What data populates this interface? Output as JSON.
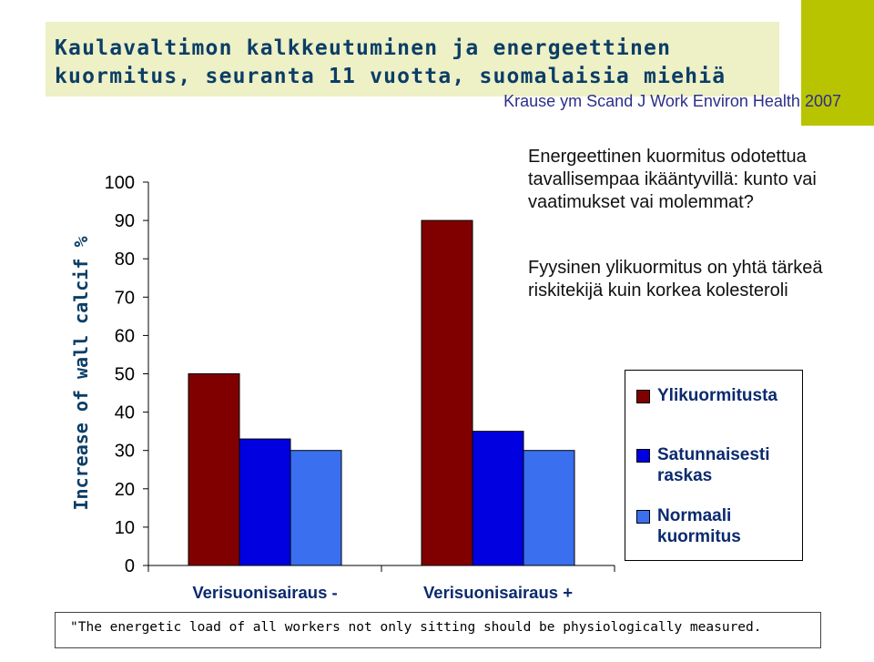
{
  "slide": {
    "title_line1": "Kaulavaltimon kalkkeutuminen ja energeettinen",
    "title_line2": "kuormitus, seuranta 11 vuotta, suomalaisia miehiä",
    "citation": "Krause ym Scand J Work Environ Health 2007",
    "text_block1": "Energeettinen kuormitus odotettua tavallisempaa ikääntyvillä: kunto vai vaatimukset vai molemmat?",
    "text_block2": "Fyysinen ylikuormitus on yhtä tärkeä riskitekijä kuin korkea kolesteroli",
    "quote": "\"The energetic load of all workers not only sitting should be physiologically measured.",
    "colors": {
      "title": "#0b3e66",
      "accent": "#b9c400",
      "title_bg": "#eef0c6"
    }
  },
  "chart_data": {
    "type": "bar",
    "ylabel": "Increase of wall calcif %",
    "xlabel": "",
    "ylim": [
      0,
      100
    ],
    "yticks": [
      0,
      10,
      20,
      30,
      40,
      50,
      60,
      70,
      80,
      90,
      100
    ],
    "categories": [
      "Verisuonisairaus -",
      "Verisuonisairaus +"
    ],
    "series": [
      {
        "name": "Ylikuormitusta",
        "color": "#800000",
        "values": [
          50,
          90
        ]
      },
      {
        "name": "Satunnaisesti raskas",
        "color": "#0000e0",
        "values": [
          33,
          35
        ]
      },
      {
        "name": "Normaali kuormitus",
        "color": "#3a6ff0",
        "values": [
          30,
          30
        ]
      }
    ],
    "legend_position": "right",
    "grid": false
  }
}
